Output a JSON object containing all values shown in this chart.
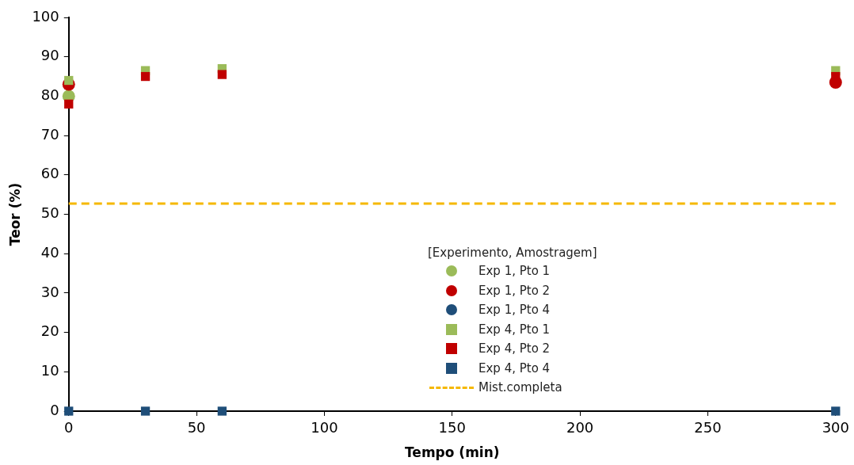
{
  "chart_data": {
    "type": "scatter",
    "xlabel": "Tempo (min)",
    "ylabel": "Teor (%)",
    "legend_title": "[Experimento, Amostragem]",
    "legend": "bottom",
    "grid": false,
    "xlim": [
      0,
      300
    ],
    "xticks": [
      0,
      50,
      100,
      150,
      200,
      250,
      300
    ],
    "ylim": [
      0,
      100
    ],
    "yticks": [
      0,
      10,
      20,
      30,
      40,
      50,
      60,
      70,
      80,
      90,
      100
    ],
    "series": [
      {
        "name": "Exp 1, Pto 1",
        "color": "#9bbb59",
        "marker": "circle",
        "x": [
          0
        ],
        "values": [
          80
        ]
      },
      {
        "name": "Exp 1, Pto 2",
        "color": "#c00000",
        "marker": "circle",
        "x": [
          0,
          300
        ],
        "values": [
          83,
          83.5
        ]
      },
      {
        "name": "Exp 1, Pto 4",
        "color": "#1f4e79",
        "marker": "circle"
      },
      {
        "name": "Exp 4, Pto 1",
        "color": "#9bbb59",
        "marker": "square",
        "x": [
          0,
          30,
          60,
          300
        ],
        "values": [
          84,
          86.5,
          87,
          86.5
        ]
      },
      {
        "name": "Exp 4, Pto 2",
        "color": "#c00000",
        "marker": "square",
        "x": [
          0,
          30,
          60,
          300
        ],
        "values": [
          78,
          85,
          85.5,
          85
        ]
      },
      {
        "name": "Exp 4, Pto 4",
        "color": "#1f4e79",
        "marker": "square",
        "x": [
          0,
          30,
          60,
          300
        ],
        "values": [
          0,
          0,
          0,
          0
        ]
      }
    ],
    "ref_lines": [
      {
        "axis": "y",
        "value": 52.7,
        "label": "Mist.completa",
        "color": "#f5b800",
        "line_style": "dashed"
      }
    ]
  }
}
